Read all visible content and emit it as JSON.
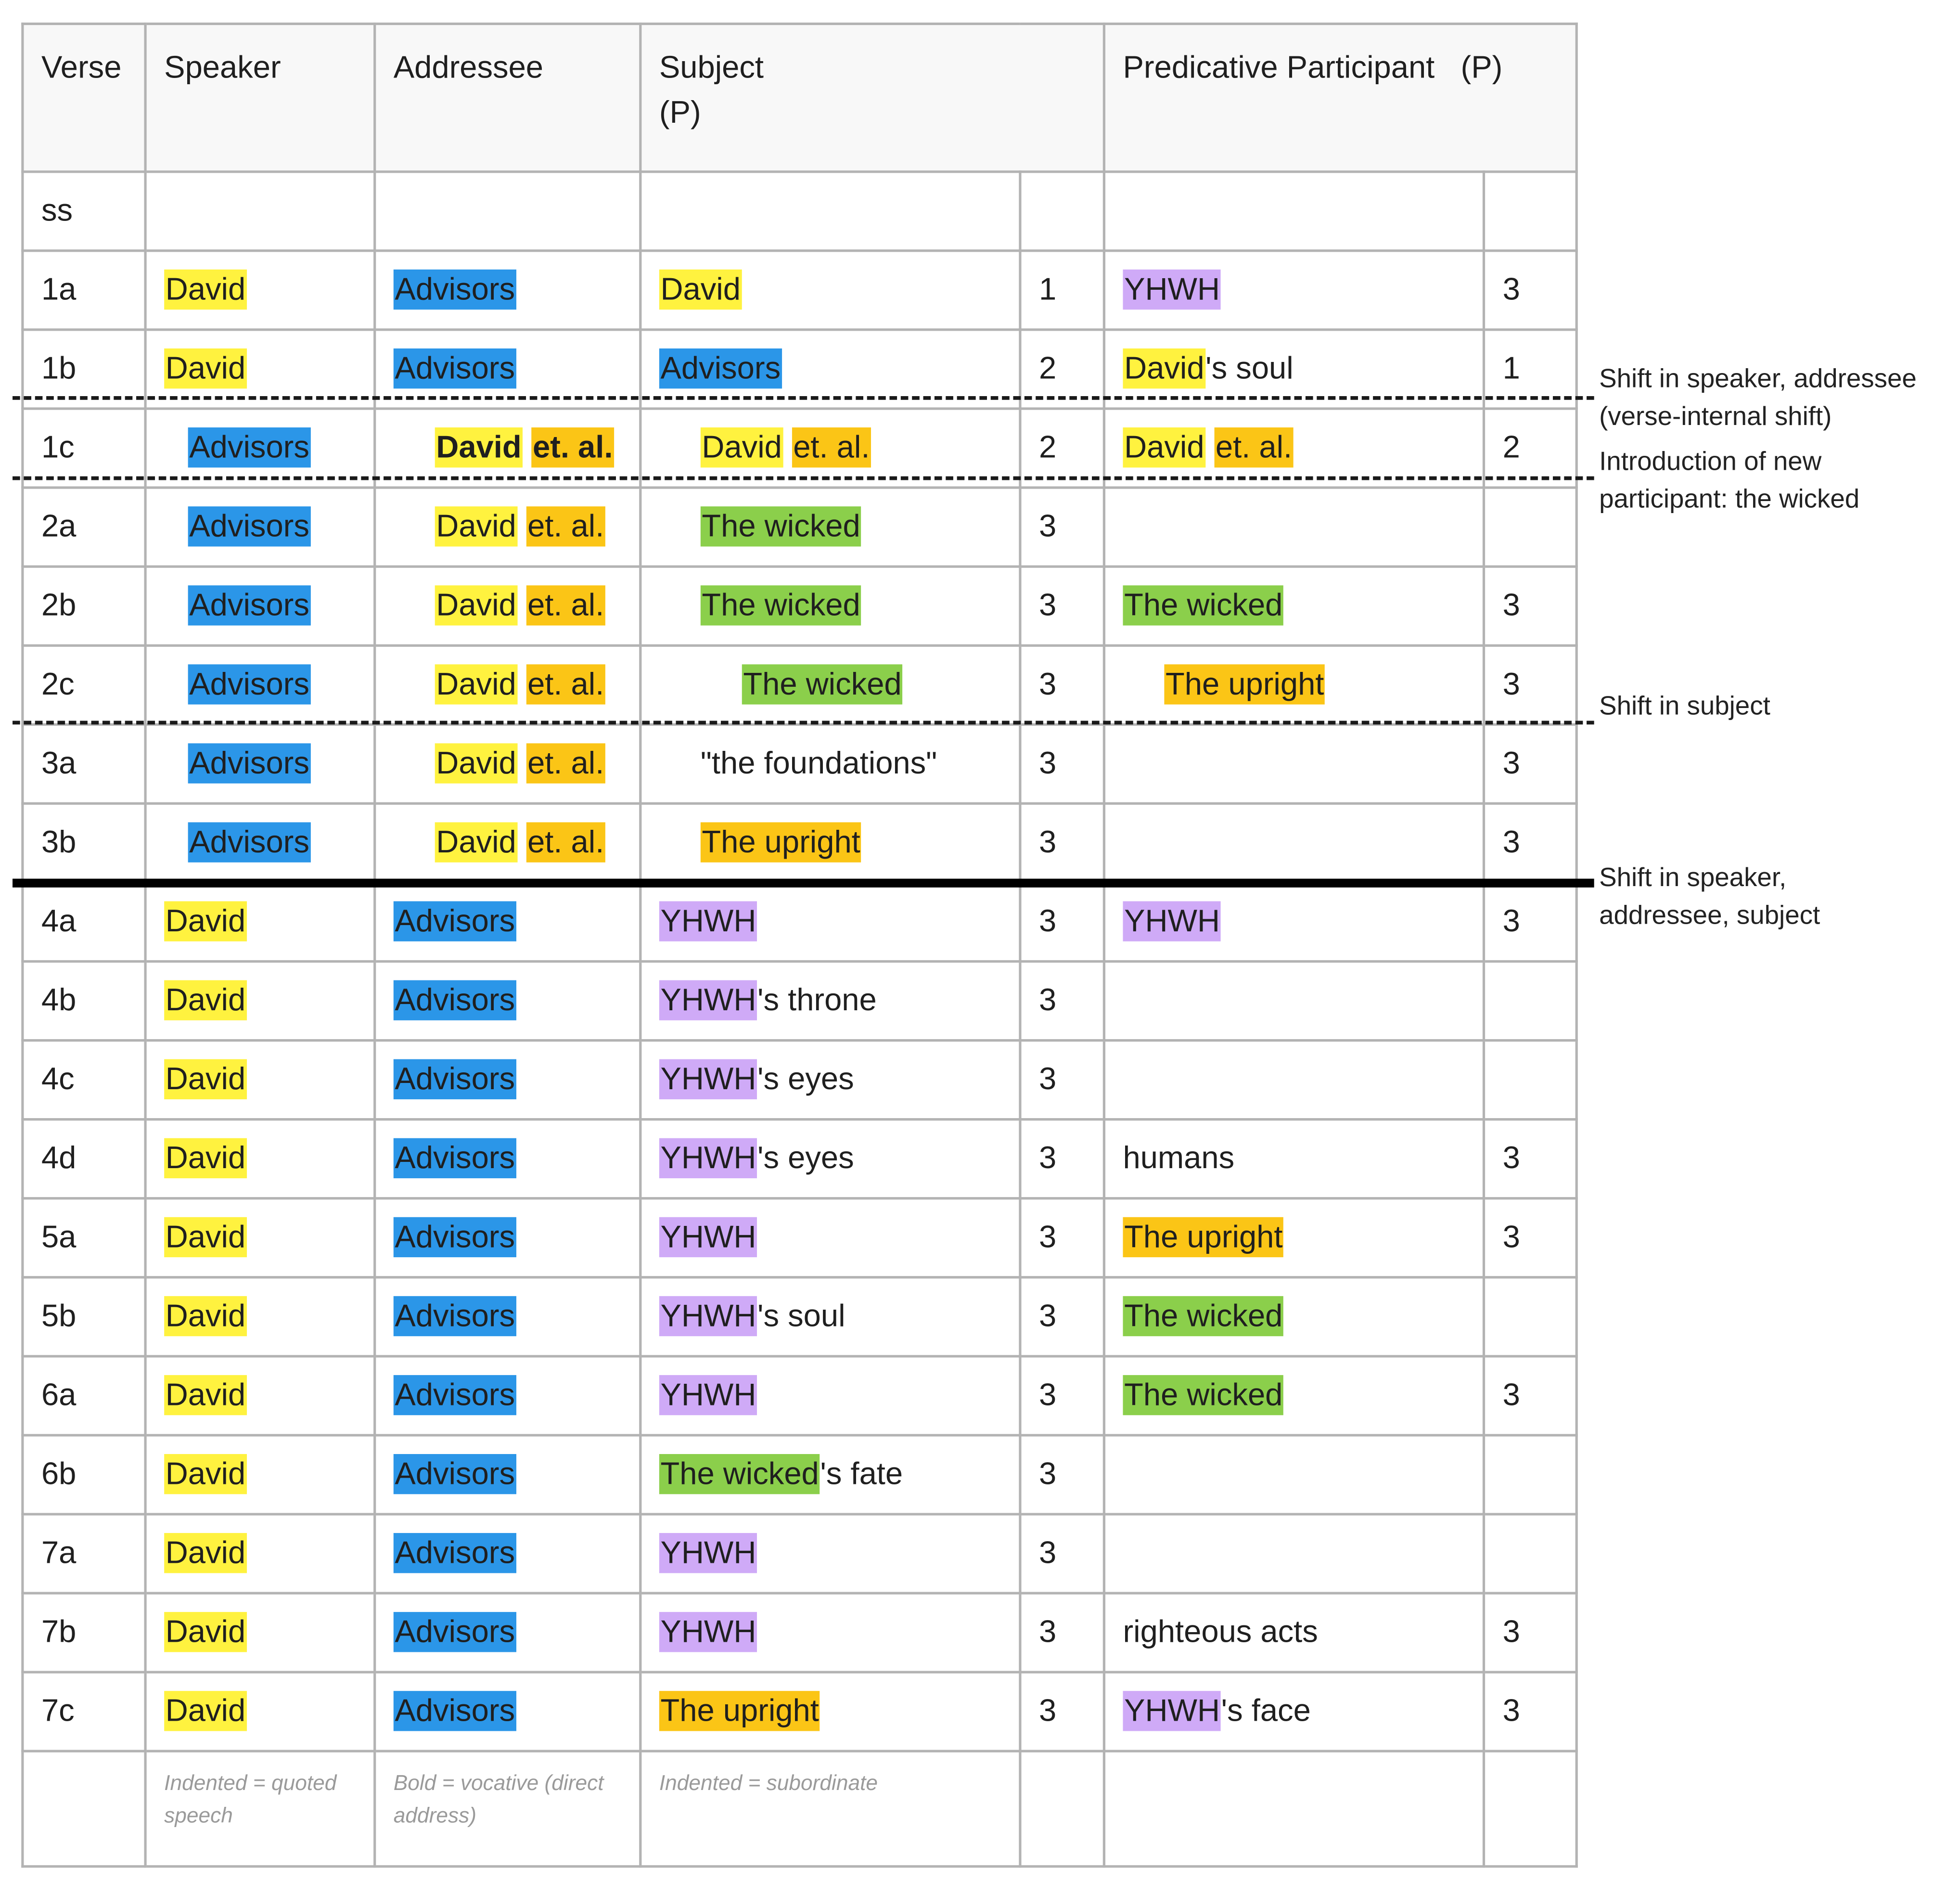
{
  "header": {
    "verse": "Verse",
    "speaker": "Speaker",
    "addressee": "Addressee",
    "subject_line1": "Subject",
    "subject_line2": "(P)",
    "predicative": "Predicative Participant",
    "predicative_p": "(P)"
  },
  "superscription": {
    "verse": "ss"
  },
  "terms": {
    "david": "David",
    "advisors": "Advisors",
    "et_al": "et. al.",
    "yhwh": "YHWH",
    "wicked": "The wicked",
    "upright": "The upright",
    "foundations": "\"the foundations\"",
    "possessive": "'s",
    "soul": " soul",
    "throne": " throne",
    "eyes": " eyes",
    "fate": " fate",
    "face": " face",
    "humans": "humans",
    "righteous_acts": "righteous acts"
  },
  "rows": [
    {
      "verse": "1a",
      "subject_person": "1",
      "predicative_person": "3"
    },
    {
      "verse": "1b",
      "subject_person": "2",
      "predicative_person": "1"
    },
    {
      "verse": "1c",
      "subject_person": "2",
      "predicative_person": "2"
    },
    {
      "verse": "2a",
      "subject_person": "3",
      "predicative_person": ""
    },
    {
      "verse": "2b",
      "subject_person": "3",
      "predicative_person": "3"
    },
    {
      "verse": "2c",
      "subject_person": "3",
      "predicative_person": "3"
    },
    {
      "verse": "3a",
      "subject_person": "3",
      "predicative_person": "3"
    },
    {
      "verse": "3b",
      "subject_person": "3",
      "predicative_person": "3"
    },
    {
      "verse": "4a",
      "subject_person": "3",
      "predicative_person": "3"
    },
    {
      "verse": "4b",
      "subject_person": "3",
      "predicative_person": ""
    },
    {
      "verse": "4c",
      "subject_person": "3",
      "predicative_person": ""
    },
    {
      "verse": "4d",
      "subject_person": "3",
      "predicative_person": "3"
    },
    {
      "verse": "5a",
      "subject_person": "3",
      "predicative_person": "3"
    },
    {
      "verse": "5b",
      "subject_person": "3",
      "predicative_person": ""
    },
    {
      "verse": "6a",
      "subject_person": "3",
      "predicative_person": "3"
    },
    {
      "verse": "6b",
      "subject_person": "3",
      "predicative_person": ""
    },
    {
      "verse": "7a",
      "subject_person": "3",
      "predicative_person": ""
    },
    {
      "verse": "7b",
      "subject_person": "3",
      "predicative_person": "3"
    },
    {
      "verse": "7c",
      "subject_person": "3",
      "predicative_person": "3"
    }
  ],
  "legend": {
    "speaker": "Indented = quoted speech",
    "addressee": "Bold = vocative (direct address)",
    "subject": "Indented = subordinate"
  },
  "annotations": {
    "shift_speaker_addressee": "Shift in speaker, addressee",
    "verse_internal": "(verse-internal shift)",
    "intro_line1": "Introduction of new",
    "intro_line2": "participant: the wicked",
    "shift_subject": "Shift in subject",
    "shift_all_line1": "Shift in speaker,",
    "shift_all_line2": "addressee, subject"
  },
  "colors": {
    "david": "#fff23f",
    "advisors": "#2b96e8",
    "et_al_upright": "#fbc516",
    "wicked": "#8bcf4b",
    "yhwh": "#cfaaf7"
  }
}
